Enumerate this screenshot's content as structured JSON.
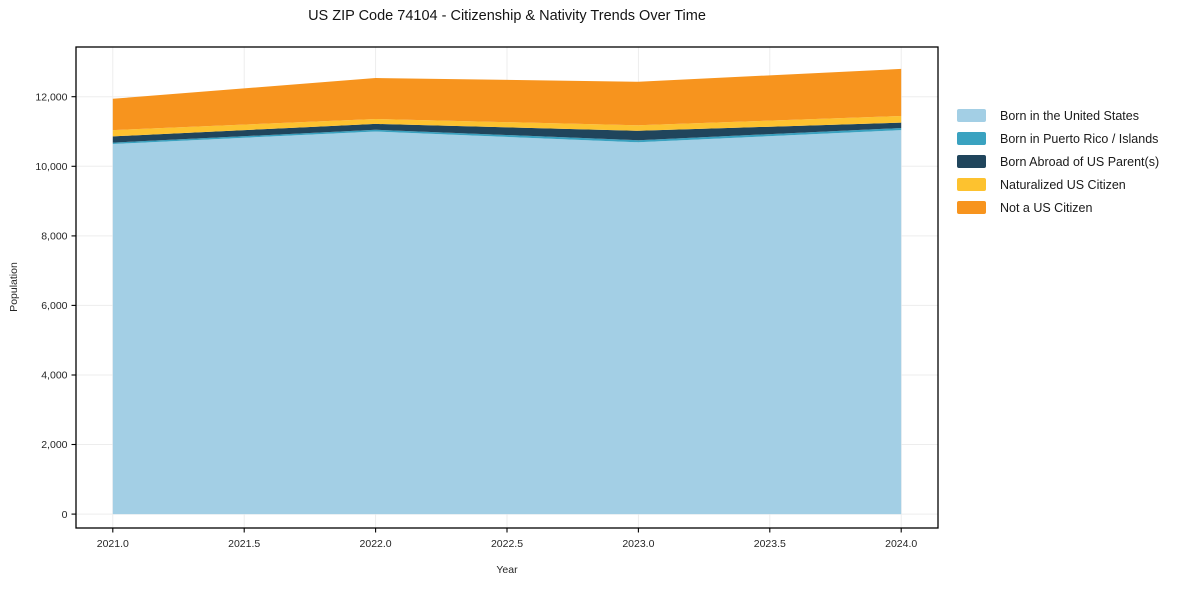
{
  "chart_data": {
    "type": "area",
    "stacked": true,
    "title": "US ZIP Code 74104 - Citizenship & Nativity Trends Over Time",
    "xlabel": "Year",
    "ylabel": "Population",
    "x": [
      2021,
      2022,
      2023,
      2024
    ],
    "series": [
      {
        "name": "Born in the United States",
        "color": "#a3cfe5",
        "values": [
          10640,
          11000,
          10690,
          11040
        ]
      },
      {
        "name": "Born in Puerto Rico / Islands",
        "color": "#3aa2c0",
        "values": [
          40,
          50,
          60,
          60
        ]
      },
      {
        "name": "Born Abroad of US Parent(s)",
        "color": "#20455c",
        "values": [
          180,
          170,
          270,
          155
        ]
      },
      {
        "name": "Naturalized US Citizen",
        "color": "#fdc22f",
        "values": [
          180,
          140,
          160,
          190
        ]
      },
      {
        "name": "Not a US Citizen",
        "color": "#f7941e",
        "values": [
          900,
          1180,
          1250,
          1355
        ]
      }
    ],
    "totals_by_year": [
      11940,
      12540,
      12430,
      12800
    ],
    "xticks": [
      2021.0,
      2021.5,
      2022.0,
      2022.5,
      2023.0,
      2023.5,
      2024.0
    ],
    "xtick_labels": [
      "2021.0",
      "2021.5",
      "2022.0",
      "2022.5",
      "2023.0",
      "2023.5",
      "2024.0"
    ],
    "yticks": [
      0,
      2000,
      4000,
      6000,
      8000,
      10000,
      12000
    ],
    "ytick_labels": [
      "0",
      "2,000",
      "4,000",
      "6,000",
      "8,000",
      "10,000",
      "12,000"
    ],
    "xlim": [
      2020.86,
      2024.14
    ],
    "ylim": [
      -400,
      13430
    ],
    "grid": true,
    "grid_color": "#ededed",
    "spine_color": "#000000",
    "tick_text_color": "#262626",
    "legend_position": "right"
  }
}
